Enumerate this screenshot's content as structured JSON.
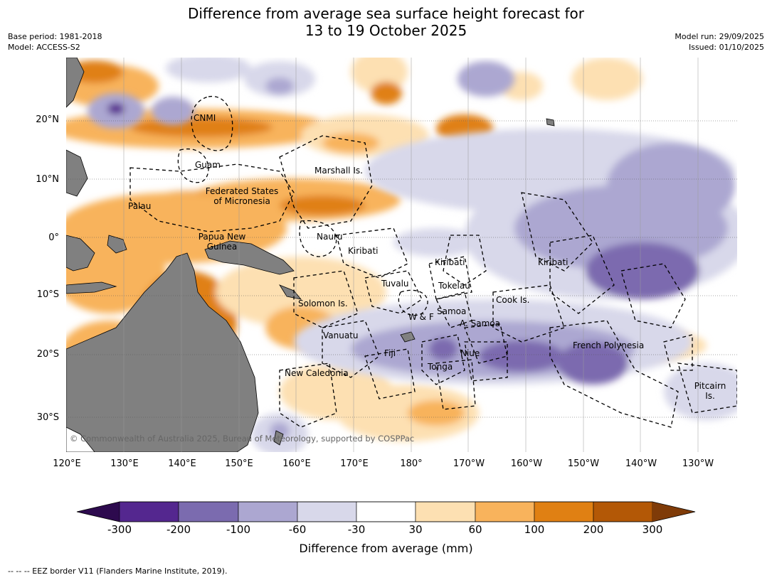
{
  "title_line1": "Difference from average sea surface height forecast for",
  "title_line2": "13 to 19 October 2025",
  "meta": {
    "base_period": "Base period: 1981-2018",
    "model": "Model: ACCESS-S2",
    "model_run": "Model run: 29/09/2025",
    "issued": "Issued: 01/10/2025"
  },
  "lat_labels": [
    "20°N",
    "10°N",
    "0°",
    "10°S",
    "20°S",
    "30°S"
  ],
  "lon_labels": [
    "120°E",
    "130°E",
    "140°E",
    "150°E",
    "160°E",
    "170°E",
    "180°",
    "170°W",
    "160°W",
    "150°W",
    "140°W",
    "130°W"
  ],
  "places": {
    "cnmi": "CNMI",
    "guam": "Guam",
    "marshall": "Marshall Is.",
    "fsm_1": "Federated States",
    "fsm_2": "of Micronesia",
    "palau": "Palau",
    "png_1": "Papua New",
    "png_2": "Guinea",
    "nauru": "Nauru",
    "kiribati_w": "Kiribati",
    "kiribati_c": "Kiribati",
    "kiribati_e": "Kiribati",
    "tuvalu": "Tuvalu",
    "tokelau": "Tokelau",
    "cook": "Cook Is.",
    "solomon": "Solomon Is.",
    "samoa": "Samoa",
    "wf": "W & F",
    "asamoa": "A. Samoa",
    "vanuatu": "Vanuatu",
    "fiji": "Fiji",
    "niue": "Niue",
    "tonga": "Tonga",
    "new_caledonia": "New Caledonia",
    "french_polynesia": "French Polynesia",
    "pitcairn_1": "Pitcairn",
    "pitcairn_2": "Is."
  },
  "copyright": "© Commonwealth of Australia 2025, Bureau of Meteorology, supported by COSPPac",
  "colorbar": {
    "ticks": [
      "-300",
      "-200",
      "-100",
      "-60",
      "-30",
      "30",
      "60",
      "100",
      "200",
      "300"
    ],
    "colors": [
      "#2d0a4e",
      "#54278f",
      "#7b6baf",
      "#aca7d1",
      "#d8d8ea",
      "#ffffff",
      "#fde0b2",
      "#f8b35c",
      "#e08013",
      "#b35806",
      "#7f3b08"
    ],
    "label": "Difference from average (mm)"
  },
  "footnote": "--  --  -- EEZ border V11 (Flanders Marine Institute, 2019)."
}
